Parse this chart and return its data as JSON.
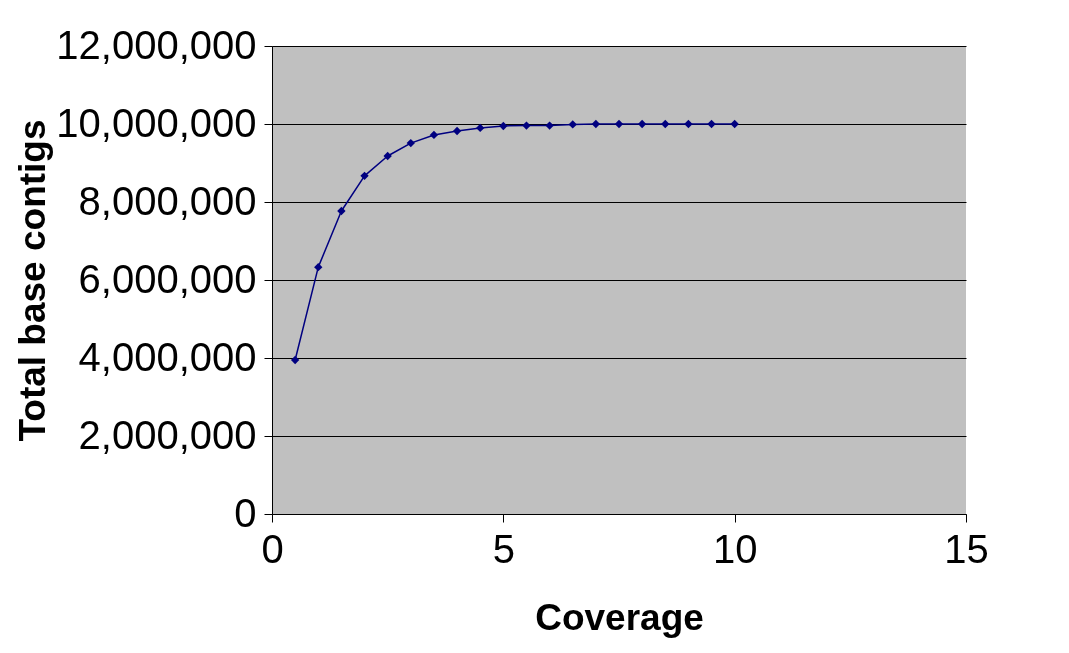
{
  "chart_data": {
    "type": "line",
    "xlabel": "Coverage",
    "ylabel": "Total base contigs",
    "x": [
      0.5,
      1,
      1.5,
      2,
      2.5,
      3,
      3.5,
      4,
      4.5,
      5,
      5.5,
      6,
      6.5,
      7,
      7.5,
      8,
      8.5,
      9,
      9.5,
      10
    ],
    "series": [
      {
        "color": "#000080",
        "values": [
          3950000,
          6330000,
          7770000,
          8670000,
          9180000,
          9510000,
          9720000,
          9820000,
          9900000,
          9950000,
          9960000,
          9960000,
          9990000,
          10000000,
          10000000,
          10000000,
          10000000,
          10000000,
          10000000,
          10000000
        ]
      }
    ],
    "xlim": [
      0,
      15
    ],
    "xticks": [
      0,
      5,
      10,
      15
    ],
    "ylim": [
      0,
      12000000
    ],
    "yticks": [
      0,
      {
        "value": 2000000,
        "label": "2,000,000"
      },
      {
        "value": 4000000,
        "label": "4,000,000"
      },
      {
        "value": 6000000,
        "label": "6,000,000"
      },
      {
        "value": 8000000,
        "label": "8,000,000"
      },
      {
        "value": 10000000,
        "label": "10,000,000"
      },
      {
        "value": 12000000,
        "label": "12,000,000"
      }
    ],
    "grid": "y",
    "marker": "diamond",
    "line_style": "solid"
  }
}
